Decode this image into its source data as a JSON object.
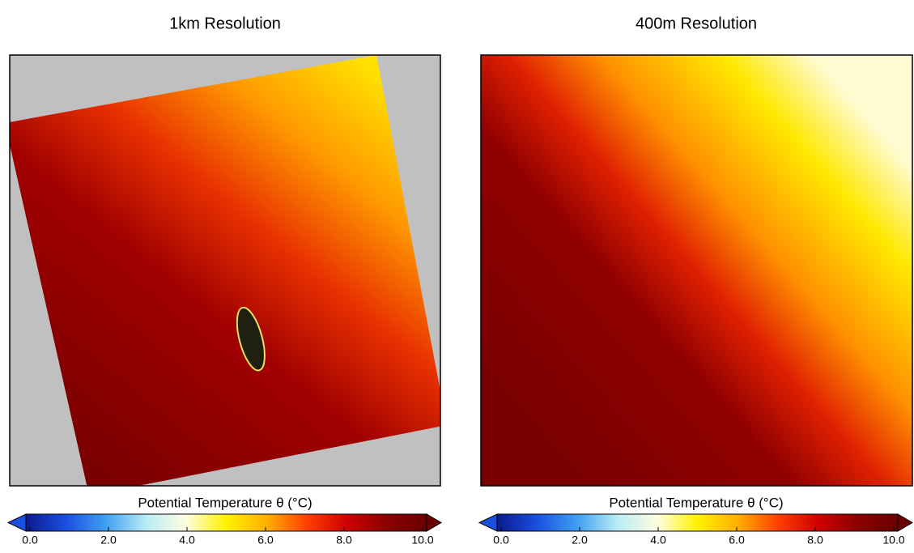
{
  "chart_data": [
    {
      "type": "heatmap",
      "title": "1km Resolution",
      "colorbar_label": "Potential Temperature θ (°C)",
      "clim": [
        0,
        10
      ],
      "cticks": [
        {
          "value": 0,
          "label": "0.0"
        },
        {
          "value": 2,
          "label": "2.0"
        },
        {
          "value": 4,
          "label": "4.0"
        },
        {
          "value": 6,
          "label": "6.0"
        },
        {
          "value": 8,
          "label": "8.0"
        },
        {
          "value": 10,
          "label": "10.0"
        }
      ],
      "colors": [
        "#0a1a8c",
        "#1a4fe0",
        "#3fa0f0",
        "#b8ecf5",
        "#fffde0",
        "#fff200",
        "#ffb000",
        "#ff4000",
        "#d00000",
        "#8a0000",
        "#6a0000"
      ]
    },
    {
      "type": "heatmap",
      "title": "400m Resolution",
      "colorbar_label": "Potential Temperature θ (°C)",
      "clim": [
        0,
        10
      ],
      "cticks": [
        {
          "value": 0,
          "label": "0.0"
        },
        {
          "value": 2,
          "label": "2.0"
        },
        {
          "value": 4,
          "label": "4.0"
        },
        {
          "value": 6,
          "label": "6.0"
        },
        {
          "value": 8,
          "label": "8.0"
        },
        {
          "value": 10,
          "label": "10.0"
        }
      ],
      "colors": [
        "#0a1a8c",
        "#1a4fe0",
        "#3fa0f0",
        "#b8ecf5",
        "#fffde0",
        "#fff200",
        "#ffb000",
        "#ff4000",
        "#d00000",
        "#8a0000",
        "#6a0000"
      ]
    }
  ]
}
